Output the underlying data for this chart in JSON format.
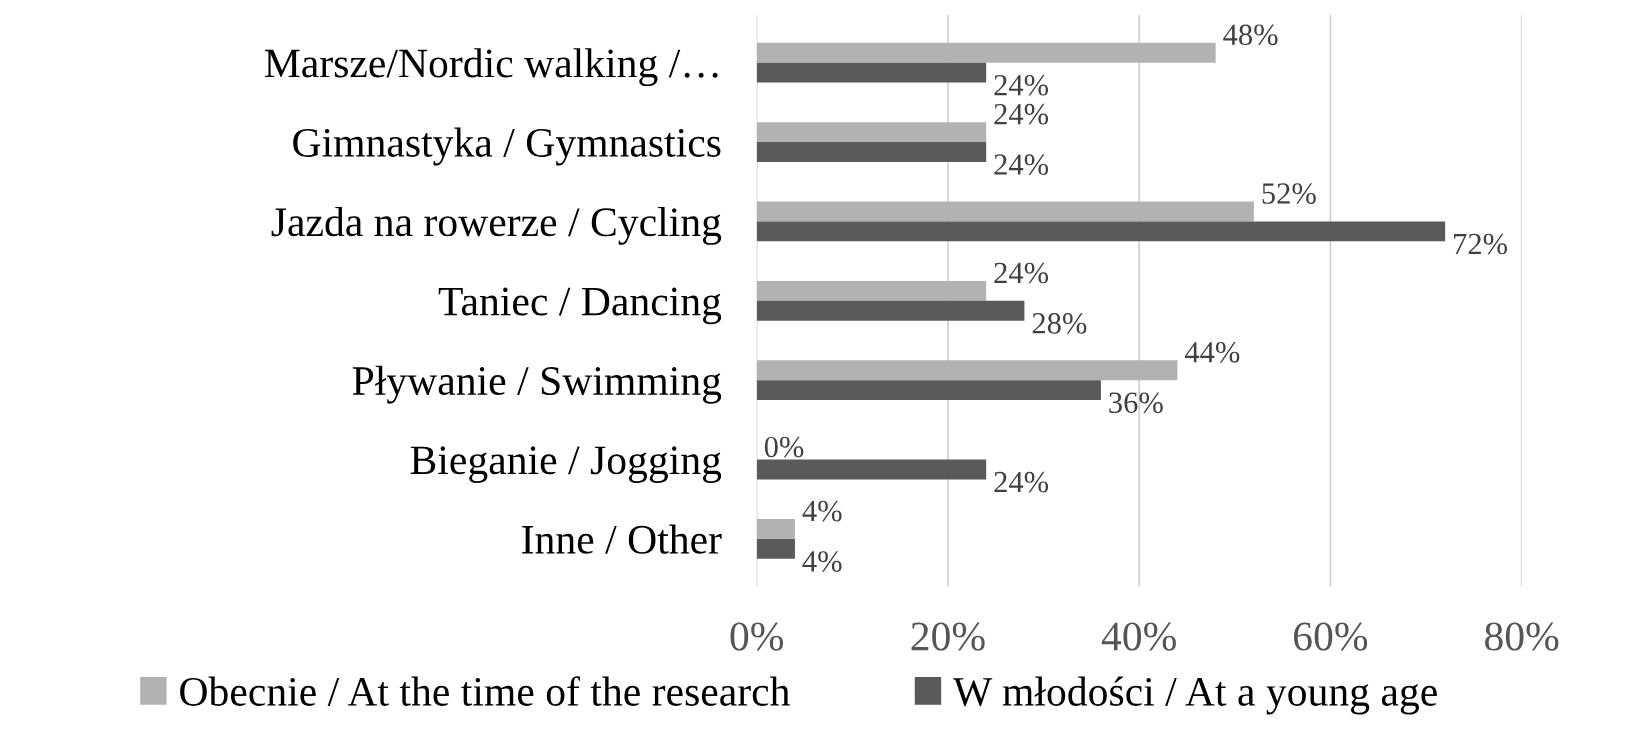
{
  "chart_data": {
    "type": "bar",
    "orientation": "horizontal",
    "categories": [
      "Marsze/Nordic walking /…",
      "Gimnastyka / Gymnastics",
      "Jazda na rowerze / Cycling",
      "Taniec / Dancing",
      "Pływanie / Swimming",
      "Bieganie / Jogging",
      "Inne / Other"
    ],
    "series": [
      {
        "name": "Obecnie / At the time of the research",
        "color": "#b2b2b2",
        "values": [
          48,
          24,
          52,
          24,
          44,
          0,
          4
        ],
        "value_labels": [
          "48%",
          "24%",
          "52%",
          "24%",
          "44%",
          "0%",
          "4%"
        ]
      },
      {
        "name": "W młodości / At a young age",
        "color": "#5a5a5a",
        "values": [
          24,
          24,
          72,
          28,
          36,
          24,
          4
        ],
        "value_labels": [
          "24%",
          "24%",
          "72%",
          "28%",
          "36%",
          "24%",
          "4%"
        ]
      }
    ],
    "xlim": [
      0,
      80
    ],
    "xticks": [
      {
        "value": 0,
        "label": "0%"
      },
      {
        "value": 20,
        "label": "20%"
      },
      {
        "value": 40,
        "label": "40%"
      },
      {
        "value": 60,
        "label": "60%"
      },
      {
        "value": 80,
        "label": "80%"
      }
    ],
    "grid": "x",
    "legend": "bottom"
  }
}
